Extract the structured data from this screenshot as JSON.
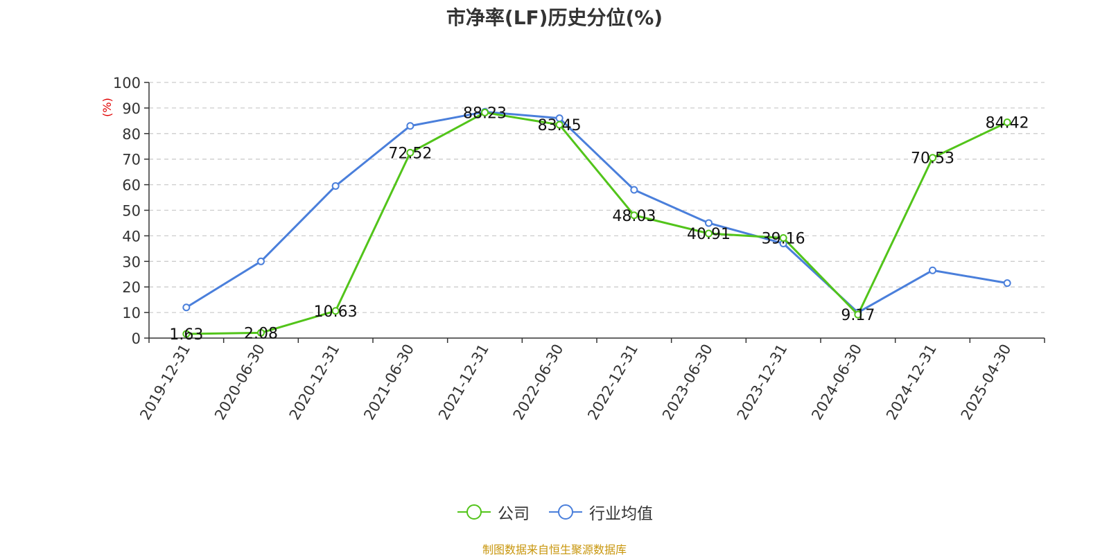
{
  "chart_data": {
    "type": "line",
    "title": "市净率(LF)历史分位(%)",
    "ylabel": "(%)",
    "ylim": [
      0,
      100
    ],
    "yticks": [
      0,
      10,
      20,
      30,
      40,
      50,
      60,
      70,
      80,
      90,
      100
    ],
    "grid": true,
    "legend_position": "bottom",
    "categories": [
      "2019-12-31",
      "2020-06-30",
      "2020-12-31",
      "2021-06-30",
      "2021-12-31",
      "2022-06-30",
      "2022-12-31",
      "2023-06-30",
      "2023-12-31",
      "2024-06-30",
      "2024-12-31",
      "2025-04-30"
    ],
    "series": [
      {
        "name": "公司",
        "color": "#52c41a",
        "values": [
          1.63,
          2.08,
          10.63,
          72.52,
          88.23,
          83.45,
          48.03,
          40.91,
          39.16,
          9.17,
          70.53,
          84.42
        ],
        "labels": [
          "1.63",
          "2.08",
          "10.63",
          "72.52",
          "88.23",
          "83.45",
          "48.03",
          "40.91",
          "39.16",
          "9.17",
          "70.53",
          "84.42"
        ]
      },
      {
        "name": "行业均值",
        "color": "#4a7fdb",
        "values": [
          12,
          30,
          59.5,
          83,
          88.5,
          86,
          58,
          45,
          37,
          10,
          26.5,
          21.5
        ]
      }
    ],
    "source": "制图数据来自恒生聚源数据库"
  }
}
